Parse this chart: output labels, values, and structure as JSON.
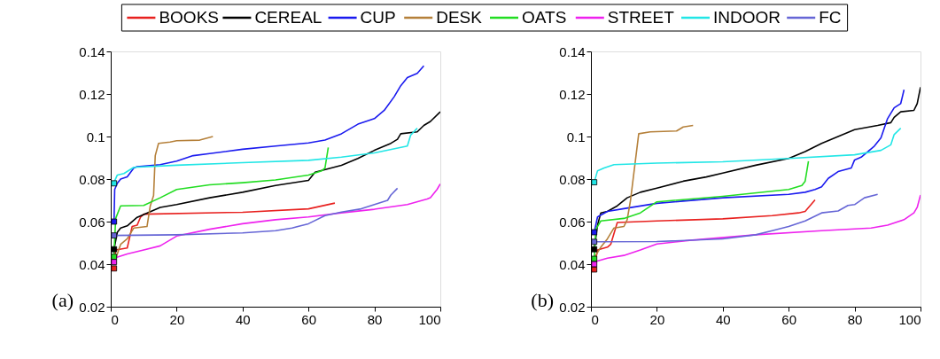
{
  "chart_data": [
    {
      "type": "line",
      "annotations": [
        "(a)"
      ],
      "xlim": [
        0,
        100
      ],
      "ylim": [
        0.02,
        0.14
      ],
      "xticks": [
        0,
        20,
        40,
        60,
        80,
        100
      ],
      "yticks": [
        0.02,
        0.04,
        0.06,
        0.08,
        0.1,
        0.12,
        0.14
      ],
      "grid": false,
      "legend": "top",
      "series": [
        {
          "name": "BOOKS",
          "color": "#e8211f",
          "x": [
            1,
            1.5,
            5,
            6.5,
            8,
            9,
            10,
            40,
            60,
            68
          ],
          "values": [
            0.04,
            0.0467,
            0.0476,
            0.0577,
            0.0583,
            0.062,
            0.0635,
            0.0644,
            0.066,
            0.0687
          ]
        },
        {
          "name": "CEREAL",
          "color": "#000000",
          "x": [
            1,
            2,
            3,
            5,
            8,
            15,
            20,
            30,
            40,
            50,
            60,
            62,
            70,
            75,
            80,
            85,
            87,
            88,
            93,
            95,
            97,
            100
          ],
          "values": [
            0.047,
            0.055,
            0.057,
            0.058,
            0.062,
            0.0667,
            0.068,
            0.0712,
            0.0738,
            0.077,
            0.0794,
            0.0832,
            0.0865,
            0.0897,
            0.0935,
            0.0968,
            0.0987,
            0.1013,
            0.1022,
            0.1052,
            0.1071,
            0.1116
          ]
        },
        {
          "name": "CUP",
          "color": "#1a1aef",
          "x": [
            1,
            1.2,
            2,
            3,
            5,
            7,
            8,
            15,
            20,
            25,
            30,
            40,
            50,
            60,
            65,
            70,
            75,
            80,
            83,
            86,
            88,
            90,
            93,
            95
          ],
          "values": [
            0.06,
            0.0751,
            0.078,
            0.08,
            0.081,
            0.0852,
            0.0858,
            0.0868,
            0.0884,
            0.091,
            0.092,
            0.094,
            0.0955,
            0.097,
            0.0983,
            0.1013,
            0.1058,
            0.1084,
            0.1123,
            0.1187,
            0.1239,
            0.1277,
            0.1297,
            0.1332
          ]
        },
        {
          "name": "DESK",
          "color": "#b5803a",
          "x": [
            1,
            3,
            5,
            7,
            11,
            12,
            13,
            13.5,
            14.5,
            18,
            20,
            27,
            30,
            31
          ],
          "values": [
            0.0403,
            0.0493,
            0.0519,
            0.057,
            0.0577,
            0.0674,
            0.0723,
            0.091,
            0.0968,
            0.0974,
            0.098,
            0.0983,
            0.0996,
            0.1
          ]
        },
        {
          "name": "OATS",
          "color": "#22dd22",
          "x": [
            1,
            1.5,
            3,
            10,
            15,
            20,
            30,
            40,
            50,
            60,
            64,
            65,
            66
          ],
          "values": [
            0.045,
            0.0615,
            0.0674,
            0.0676,
            0.0712,
            0.0751,
            0.0773,
            0.0783,
            0.0796,
            0.0819,
            0.0839,
            0.0852,
            0.0948
          ]
        },
        {
          "name": "STREET",
          "color": "#ee22ee",
          "x": [
            1,
            5,
            10,
            15,
            20,
            30,
            40,
            50,
            60,
            70,
            80,
            90,
            96,
            97,
            99,
            100
          ],
          "values": [
            0.0428,
            0.0448,
            0.0467,
            0.0486,
            0.0532,
            0.0564,
            0.059,
            0.0609,
            0.0622,
            0.0641,
            0.0658,
            0.068,
            0.0706,
            0.0712,
            0.0751,
            0.0777
          ]
        },
        {
          "name": "INDOOR",
          "color": "#22e6e6",
          "x": [
            1,
            2,
            4,
            7,
            20,
            40,
            60,
            70,
            80,
            90,
            91,
            93
          ],
          "values": [
            0.0785,
            0.0819,
            0.0826,
            0.0855,
            0.0865,
            0.0877,
            0.0888,
            0.0903,
            0.0923,
            0.0955,
            0.1006,
            0.1039
          ]
        },
        {
          "name": "FC",
          "color": "#6666d6",
          "x": [
            1,
            20,
            40,
            50,
            55,
            60,
            65,
            70,
            76,
            80,
            84,
            85,
            87
          ],
          "values": [
            0.0535,
            0.0538,
            0.0547,
            0.0557,
            0.057,
            0.059,
            0.0628,
            0.0645,
            0.066,
            0.068,
            0.07,
            0.0725,
            0.0757
          ]
        },
        {
          "type": "scatter",
          "marker": "square",
          "x": [
            1,
            1,
            1,
            1,
            1,
            1,
            1
          ],
          "values": [
            0.038,
            0.047,
            0.06,
            0.0435,
            0.041,
            0.078,
            0.0535
          ],
          "colors": [
            "#e8211f",
            "#000000",
            "#1a1aef",
            "#22dd22",
            "#ee22ee",
            "#22e6e6",
            "#6666d6"
          ]
        }
      ]
    },
    {
      "type": "line",
      "annotations": [
        "(b)"
      ],
      "xlim": [
        0,
        100
      ],
      "ylim": [
        0.02,
        0.14
      ],
      "xticks": [
        0,
        20,
        40,
        60,
        80,
        100
      ],
      "yticks": [
        0.02,
        0.04,
        0.06,
        0.08,
        0.1,
        0.12,
        0.14
      ],
      "grid": false,
      "series": [
        {
          "name": "BOOKS",
          "color": "#e8211f",
          "x": [
            1,
            2,
            5,
            6,
            8,
            20,
            40,
            55,
            63,
            65,
            68
          ],
          "values": [
            0.038,
            0.0467,
            0.048,
            0.0493,
            0.0596,
            0.0603,
            0.0613,
            0.0628,
            0.0641,
            0.0648,
            0.0702
          ]
        },
        {
          "name": "CEREAL",
          "color": "#000000",
          "x": [
            1,
            2,
            3,
            5,
            8,
            11,
            15,
            20,
            28,
            35,
            40,
            50,
            60,
            65,
            70,
            75,
            80,
            87,
            91,
            92,
            94,
            98,
            99,
            100
          ],
          "values": [
            0.047,
            0.0583,
            0.0641,
            0.0648,
            0.0674,
            0.0712,
            0.0738,
            0.0757,
            0.079,
            0.081,
            0.0828,
            0.0865,
            0.0897,
            0.0929,
            0.0968,
            0.1,
            0.1032,
            0.1052,
            0.1065,
            0.109,
            0.1116,
            0.1123,
            0.1155,
            0.1232
          ]
        },
        {
          "name": "CUP",
          "color": "#1a1aef",
          "x": [
            1,
            2,
            5,
            10,
            20,
            40,
            60,
            65,
            68,
            70,
            72,
            75,
            79,
            80,
            82,
            86,
            88,
            90,
            92,
            94,
            95
          ],
          "values": [
            0.055,
            0.0622,
            0.0648,
            0.0661,
            0.0686,
            0.0712,
            0.0728,
            0.0738,
            0.0751,
            0.0764,
            0.0803,
            0.0835,
            0.0852,
            0.089,
            0.0903,
            0.0955,
            0.0994,
            0.1084,
            0.1135,
            0.1155,
            0.122
          ]
        },
        {
          "name": "DESK",
          "color": "#b5803a",
          "x": [
            1,
            3,
            5,
            7,
            10,
            11,
            12,
            14.5,
            18,
            26,
            28,
            31
          ],
          "values": [
            0.043,
            0.048,
            0.0519,
            0.057,
            0.0577,
            0.0609,
            0.0699,
            0.1013,
            0.1022,
            0.1026,
            0.1045,
            0.1052
          ]
        },
        {
          "name": "OATS",
          "color": "#22dd22",
          "x": [
            1,
            1.5,
            3,
            10,
            15,
            20,
            40,
            60,
            64,
            65,
            66
          ],
          "values": [
            0.0425,
            0.0564,
            0.0603,
            0.0615,
            0.0641,
            0.0693,
            0.0719,
            0.0751,
            0.077,
            0.079,
            0.0884
          ]
        },
        {
          "name": "STREET",
          "color": "#ee22ee",
          "x": [
            1,
            5,
            10,
            15,
            20,
            30,
            50,
            70,
            85,
            90,
            95,
            98,
            99,
            100
          ],
          "values": [
            0.041,
            0.0428,
            0.0441,
            0.0467,
            0.0495,
            0.0512,
            0.0538,
            0.0557,
            0.057,
            0.0583,
            0.0609,
            0.0641,
            0.0667,
            0.0725
          ]
        },
        {
          "name": "INDOOR",
          "color": "#22e6e6",
          "x": [
            1,
            2,
            4,
            7,
            20,
            40,
            60,
            80,
            88,
            91,
            92,
            94
          ],
          "values": [
            0.0785,
            0.0839,
            0.0852,
            0.0868,
            0.0875,
            0.0881,
            0.0897,
            0.0914,
            0.0935,
            0.0961,
            0.1009,
            0.1039
          ]
        },
        {
          "name": "FC",
          "color": "#6666d6",
          "x": [
            1,
            20,
            40,
            50,
            55,
            60,
            65,
            70,
            75,
            78,
            80,
            83,
            87
          ],
          "values": [
            0.0505,
            0.0506,
            0.0519,
            0.0538,
            0.0557,
            0.0577,
            0.0603,
            0.0641,
            0.065,
            0.0676,
            0.068,
            0.0712,
            0.0728
          ]
        },
        {
          "type": "scatter",
          "marker": "square",
          "x": [
            1,
            1,
            1,
            1,
            1,
            1,
            1
          ],
          "values": [
            0.0375,
            0.047,
            0.055,
            0.0425,
            0.04,
            0.0785,
            0.0505
          ],
          "colors": [
            "#e8211f",
            "#000000",
            "#1a1aef",
            "#22dd22",
            "#ee22ee",
            "#22e6e6",
            "#6666d6"
          ]
        }
      ]
    }
  ]
}
